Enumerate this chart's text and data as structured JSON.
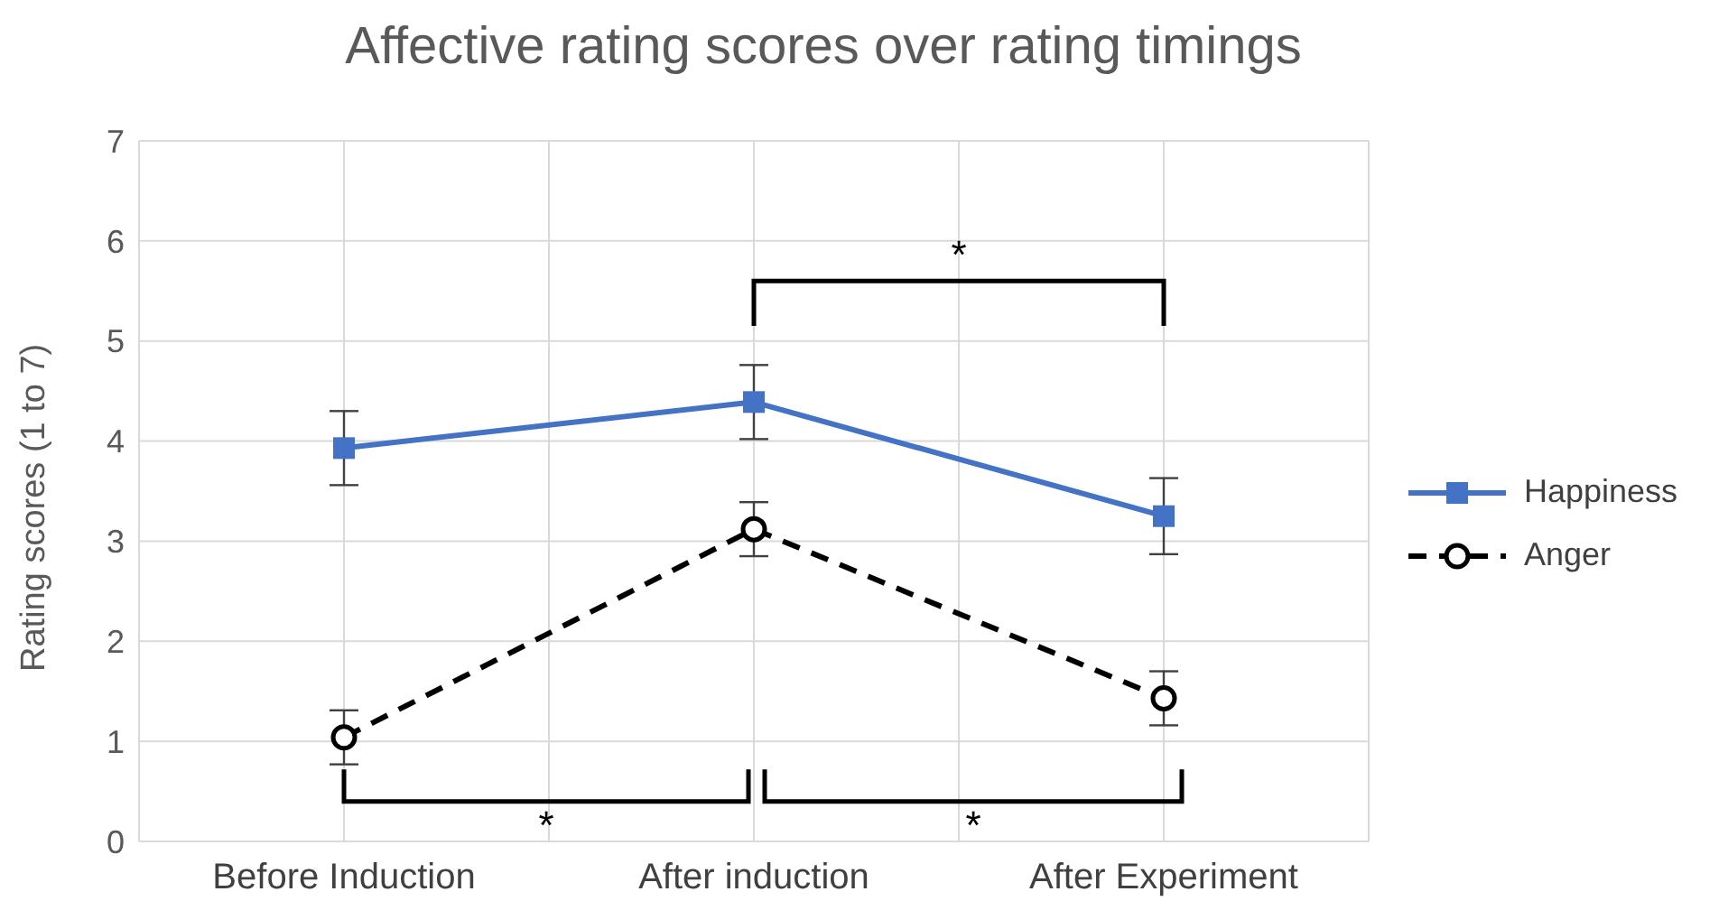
{
  "chart_data": {
    "type": "line",
    "title": "Affective rating scores over rating timings",
    "ylabel": "Rating scores (1 to 7)",
    "categories": [
      "Before Induction",
      "After induction",
      "After Experiment"
    ],
    "series": [
      {
        "name": "Happiness",
        "color": "#4472c4",
        "values": [
          3.93,
          4.39,
          3.25
        ],
        "errors": [
          0.37,
          0.37,
          0.38
        ],
        "marker": "square",
        "line_style": "solid"
      },
      {
        "name": "Anger",
        "color": "#000000",
        "values": [
          1.04,
          3.12,
          1.43
        ],
        "errors": [
          0.27,
          0.27,
          0.27
        ],
        "marker": "circle",
        "line_style": "dashed"
      }
    ],
    "ylim": [
      0,
      7
    ],
    "yticks": [
      0,
      1,
      2,
      3,
      4,
      5,
      6,
      7
    ],
    "grid": true,
    "legend": "right",
    "annotations": [
      "*",
      "*",
      "*"
    ]
  }
}
